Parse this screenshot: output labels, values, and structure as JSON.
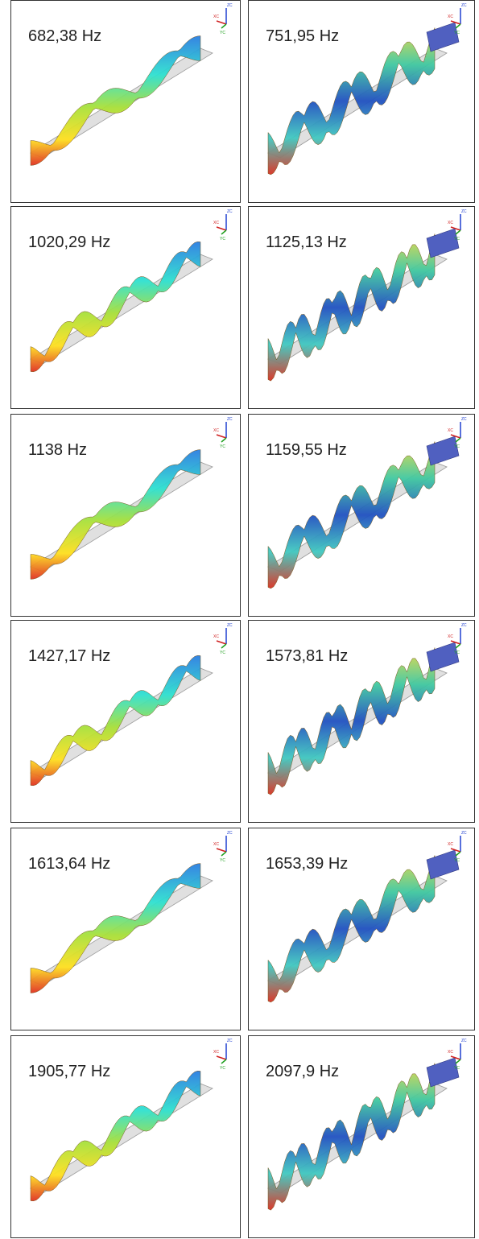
{
  "panels": [
    {
      "label": "682,38 Hz"
    },
    {
      "label": "751,95 Hz"
    },
    {
      "label": "1020,29 Hz"
    },
    {
      "label": "1125,13 Hz"
    },
    {
      "label": "1138 Hz"
    },
    {
      "label": "1159,55 Hz"
    },
    {
      "label": "1427,17 Hz"
    },
    {
      "label": "1573,81 Hz"
    },
    {
      "label": "1613,64 Hz"
    },
    {
      "label": "1653,39 Hz"
    },
    {
      "label": "1905,77 Hz"
    },
    {
      "label": "2097,9 Hz"
    }
  ],
  "triad": {
    "z": "ZC",
    "x": "XC",
    "y": "YC"
  }
}
